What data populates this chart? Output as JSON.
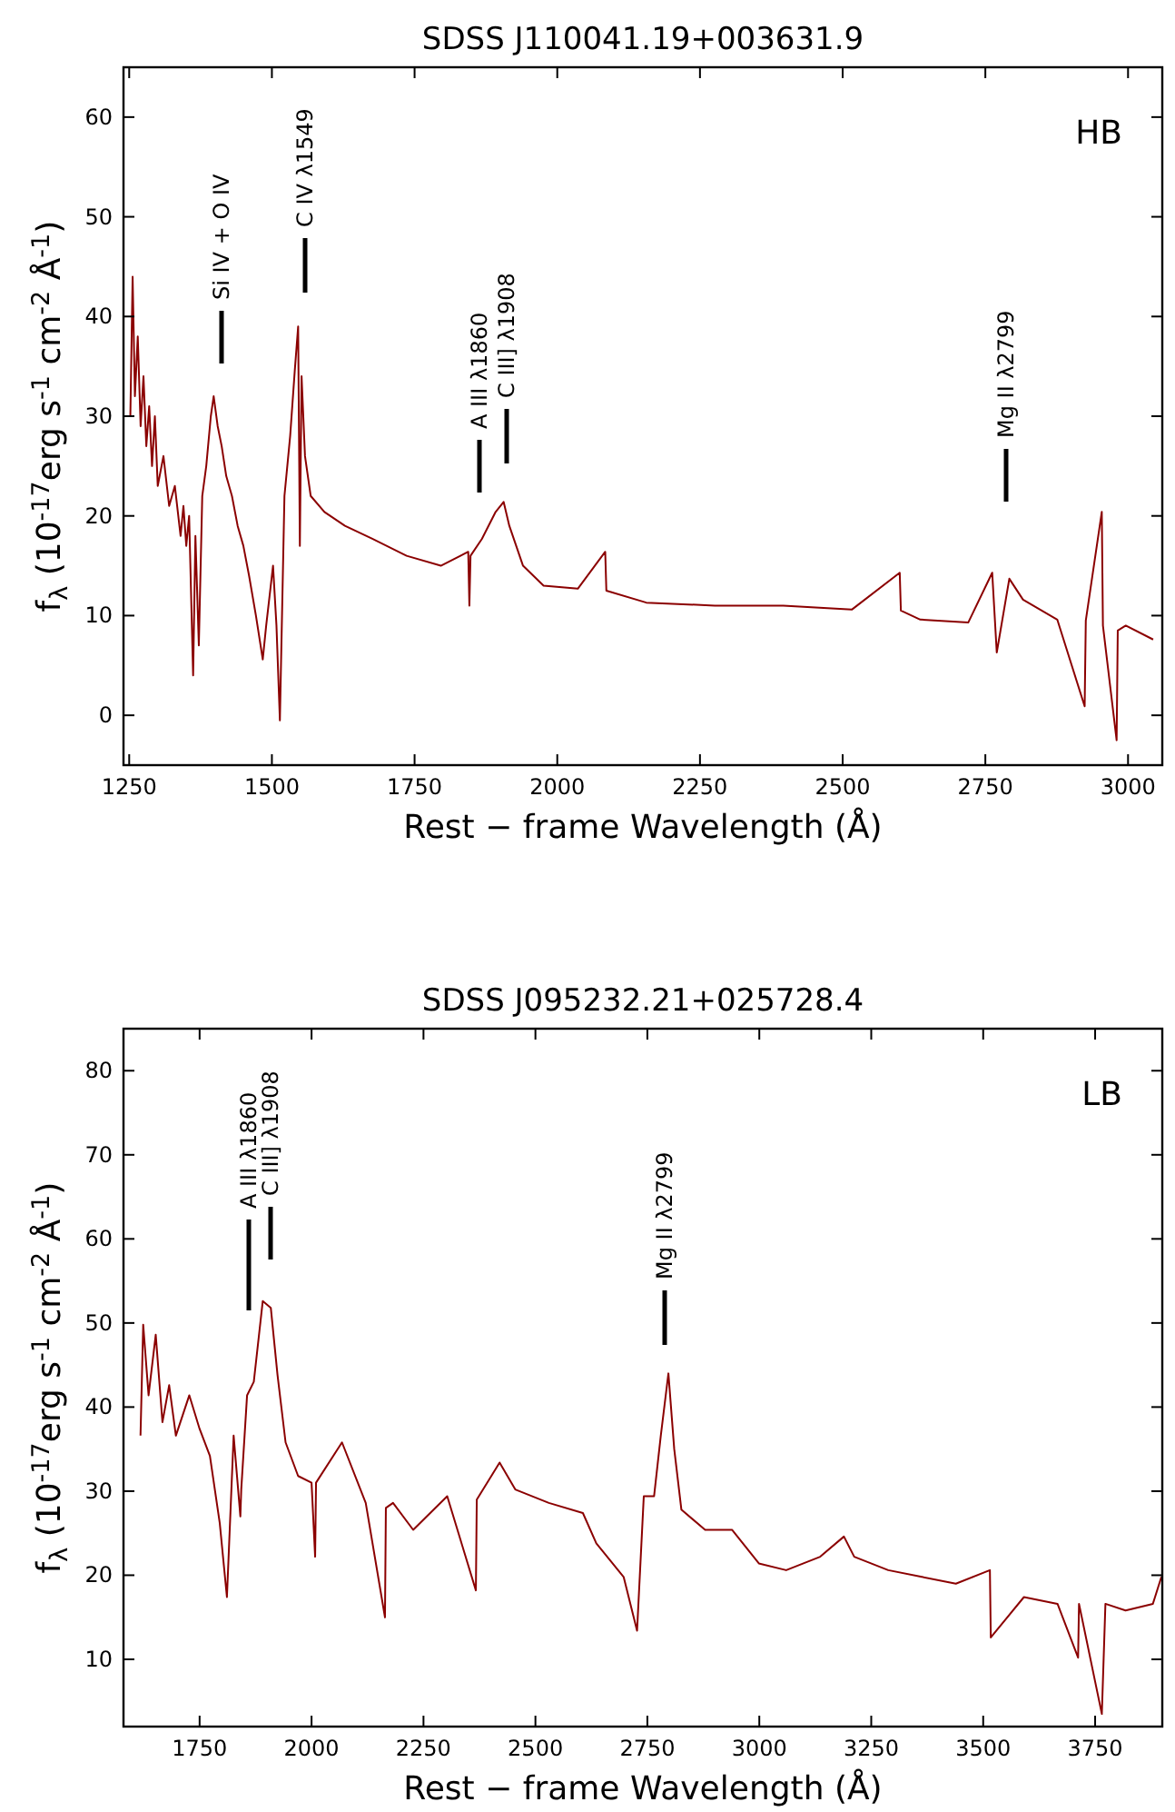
{
  "chart_data": [
    {
      "type": "line",
      "title": "SDSS J110041.19+003631.9",
      "xlabel": "Rest − frame Wavelength (Å)",
      "ylabel": "f$_{λ}$ (10$^{-17}$erg s$^{-1}$ cm$^{-2}$ Å$^{-1}$)",
      "xlim": [
        1240,
        3060
      ],
      "ylim": [
        -5,
        65
      ],
      "xticks": [
        1250,
        1500,
        1750,
        2000,
        2250,
        2500,
        2750,
        3000
      ],
      "yticks": [
        0,
        10,
        20,
        30,
        40,
        50,
        60
      ],
      "series": [
        {
          "color": "#8b0000",
          "x": [
            1252,
            1256,
            1260,
            1265,
            1270,
            1275,
            1280,
            1285,
            1290,
            1295,
            1300,
            1310,
            1320,
            1330,
            1340,
            1345,
            1350,
            1355,
            1362,
            1366,
            1372,
            1378,
            1385,
            1393,
            1398,
            1405,
            1412,
            1420,
            1430,
            1440,
            1450,
            1460,
            1472,
            1484,
            1490,
            1502,
            1508,
            1514,
            1522,
            1532,
            1540,
            1546,
            1549,
            1552,
            1558,
            1568,
            1592,
            1628,
            1676,
            1736,
            1796,
            1844,
            1846,
            1848,
            1868,
            1892,
            1906,
            1916,
            1940,
            1976,
            2036,
            2084,
            2086,
            2156,
            2276,
            2396,
            2516,
            2600,
            2602,
            2636,
            2720,
            2762,
            2770,
            2792,
            2816,
            2876,
            2924,
            2926,
            2954,
            2956,
            2980,
            2982,
            2996,
            3044
          ],
          "values": [
            30,
            44,
            32,
            38,
            29,
            34,
            27,
            31,
            25,
            30,
            23,
            26,
            21,
            23,
            18,
            21,
            17,
            20,
            4,
            18,
            7,
            22,
            25,
            30,
            32,
            29,
            27,
            24,
            22,
            19,
            17,
            14,
            10,
            5.6,
            9,
            15,
            9,
            -0.5,
            22,
            28,
            34.5,
            39,
            17,
            34,
            26,
            22,
            20.4,
            19,
            17.7,
            16,
            15,
            16.4,
            11,
            16,
            17.7,
            20.4,
            21.4,
            19,
            15,
            13,
            12.7,
            16.4,
            12.5,
            11.3,
            11,
            11,
            10.6,
            14.3,
            10.5,
            9.6,
            9.3,
            14.3,
            6.3,
            13.7,
            11.6,
            9.6,
            0.9,
            9.5,
            20.4,
            9,
            -2.5,
            8.5,
            9,
            7.6
          ]
        }
      ],
      "annotations": [
        "HB",
        "Si IV + O IV",
        "C IV λ1549",
        "A III λ1860",
        "C III] λ1908",
        "Mg II λ2799"
      ]
    },
    {
      "type": "line",
      "title": "SDSS J095232.21+025728.4",
      "xlabel": "Rest − frame Wavelength (Å)",
      "ylabel": "f$_{λ}$ (10$^{-17}$erg s$^{-1}$ cm$^{-2}$ Å$^{-1}$)",
      "xlim": [
        1580,
        3900
      ],
      "ylim": [
        2,
        85
      ],
      "xticks": [
        1750,
        2000,
        2250,
        2500,
        2750,
        3000,
        3250,
        3500,
        3750
      ],
      "yticks": [
        10,
        20,
        30,
        40,
        50,
        60,
        70,
        80
      ],
      "series": [
        {
          "color": "#8b0000",
          "x": [
            1618,
            1624,
            1636,
            1652,
            1667,
            1682,
            1697,
            1727,
            1750,
            1773,
            1795,
            1811,
            1826,
            1841,
            1843,
            1856,
            1871,
            1891,
            1909,
            1924,
            1942,
            1970,
            2000,
            2008,
            2010,
            2068,
            2121,
            2164,
            2166,
            2182,
            2227,
            2303,
            2367,
            2369,
            2420,
            2455,
            2530,
            2606,
            2636,
            2697,
            2727,
            2742,
            2765,
            2780,
            2797,
            2810,
            2826,
            2879,
            2939,
            2999,
            3060,
            3136,
            3189,
            3212,
            3288,
            3363,
            3439,
            3515,
            3517,
            3591,
            3666,
            3712,
            3714,
            3765,
            3773,
            3818,
            3879,
            3898
          ],
          "values": [
            36.6,
            49.8,
            41.4,
            48.6,
            38.2,
            42.6,
            36.6,
            41.4,
            37.4,
            34.2,
            26.2,
            17.4,
            36.6,
            27,
            30.2,
            41.4,
            43,
            52.6,
            51.8,
            43.8,
            35.8,
            31.8,
            31,
            22.2,
            31,
            35.8,
            28.6,
            15,
            28,
            28.6,
            25.4,
            29.4,
            18.2,
            29,
            33.4,
            30.2,
            28.6,
            27.4,
            23.8,
            19.8,
            13.4,
            29.4,
            29.4,
            36.6,
            44,
            35,
            27.8,
            25.4,
            25.4,
            21.4,
            20.6,
            22.2,
            24.6,
            22.2,
            20.6,
            19.8,
            19,
            20.6,
            12.6,
            17.4,
            16.6,
            10.2,
            16.6,
            3.5,
            16.6,
            15.8,
            16.6,
            19.8
          ]
        }
      ],
      "annotations": [
        "LB",
        "A III λ1860",
        "C III] λ1908",
        "Mg II λ2799"
      ]
    }
  ]
}
